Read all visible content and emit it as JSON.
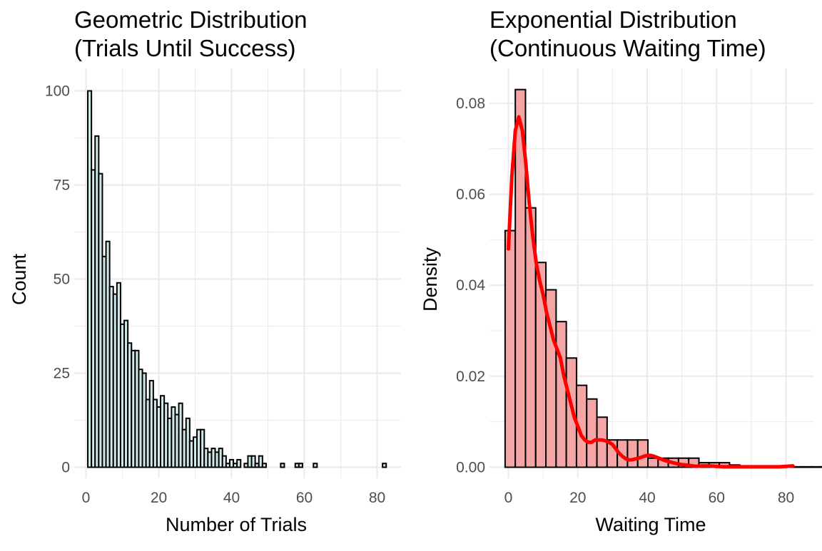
{
  "chart_data": [
    {
      "type": "bar",
      "title": [
        "Geometric Distribution",
        "(Trials Until Success)"
      ],
      "xlabel": "Number of Trials",
      "ylabel": "Count",
      "xlim": [
        -1.9,
        84
      ],
      "ylim": [
        0,
        100
      ],
      "x_ticks": [
        0,
        20,
        40,
        60,
        80
      ],
      "y_ticks": [
        0,
        25,
        50,
        75,
        100
      ],
      "grid": true,
      "bar_fill": "#cfe8e8",
      "bar_outline": "#000000",
      "x": [
        1,
        2,
        3,
        4,
        5,
        6,
        7,
        8,
        9,
        10,
        11,
        12,
        13,
        14,
        15,
        16,
        17,
        18,
        19,
        20,
        21,
        22,
        23,
        24,
        25,
        26,
        27,
        28,
        29,
        30,
        31,
        32,
        33,
        34,
        35,
        36,
        37,
        38,
        39,
        40,
        41,
        42,
        43,
        44,
        45,
        46,
        47,
        48,
        49,
        50,
        51,
        52,
        53,
        54,
        55,
        56,
        57,
        58,
        59,
        60,
        61,
        62,
        63,
        64,
        65,
        66,
        67,
        68,
        69,
        70,
        71,
        72,
        73,
        74,
        75,
        76,
        77,
        78,
        79,
        80,
        81,
        82
      ],
      "values": [
        100,
        79,
        88,
        78,
        56,
        60,
        48,
        46,
        49,
        38,
        39,
        33,
        31,
        31,
        26,
        25,
        18,
        23,
        18,
        16,
        19,
        17,
        13,
        16,
        14,
        17,
        10,
        13,
        7,
        8,
        10,
        10,
        5,
        4,
        5,
        4,
        5,
        3,
        1,
        2,
        1,
        2,
        0,
        1,
        3,
        3,
        1,
        3,
        1,
        0,
        0,
        0,
        0,
        1,
        0,
        0,
        0,
        1,
        1,
        0,
        0,
        0,
        1,
        0,
        0,
        0,
        0,
        0,
        0,
        0,
        0,
        0,
        0,
        0,
        0,
        0,
        0,
        0,
        0,
        0,
        0,
        1
      ]
    },
    {
      "type": "bar",
      "title": [
        "Exponential Distribution",
        "(Continuous Waiting Time)"
      ],
      "xlabel": "Waiting Time",
      "ylabel": "Density",
      "xlim": [
        -4.2,
        87.5
      ],
      "ylim": [
        0,
        0.083
      ],
      "x_ticks": [
        0,
        20,
        40,
        60,
        80
      ],
      "y_ticks": [
        "0.00",
        "0.02",
        "0.04",
        "0.06",
        "0.08"
      ],
      "grid": true,
      "bar_fill": "#f4a6a6",
      "bar_outline": "#000000",
      "bin_width": 2.94,
      "bin_start": -0.95,
      "values": [
        0.052,
        0.083,
        0.057,
        0.045,
        0.039,
        0.032,
        0.024,
        0.018,
        0.015,
        0.011,
        0.006,
        0.006,
        0.006,
        0.006,
        0.002,
        0.002,
        0.002,
        0.002,
        0.002,
        0.001,
        0.001,
        0.001,
        0.0005,
        0.0003,
        0.0002,
        0.0002,
        0.0001,
        0.0001,
        0.0001,
        0.0001,
        0.0001,
        0.0001,
        0.0001,
        0.0001,
        0.0001,
        0.0001,
        0.0001,
        0.0001,
        0.0001,
        0.0001,
        0.0001,
        0.0001,
        0.0001,
        0.0001,
        0.0001,
        0.0001,
        0.0001,
        0.0001,
        0.0001,
        0.0001,
        0.0001,
        0.0001,
        0.0001,
        0.0001,
        0.0001,
        0.0001,
        0.0001,
        0.0001,
        0.0001,
        0.0001,
        0.0001,
        0.0001,
        0.0001,
        0.0001,
        0.0001,
        0.0001,
        0.0001,
        0.0001,
        0.0001,
        0.0001,
        0.0001,
        0.0001,
        0.0001,
        0.0001,
        0.0001,
        0.0001,
        0.0001,
        0.0001,
        0.0001,
        0.0001,
        0.0001,
        0.0001,
        0.0001,
        0.0001,
        0.0001,
        0.0001,
        0.0001,
        0.0001,
        0.0001,
        0.0001,
        0.0001,
        0.0001,
        0.0001,
        0.0001,
        0.0001,
        0.0001,
        0.0001,
        0.0001,
        0.0001
      ],
      "density_curve": {
        "color": "#ff0000",
        "x": [
          0,
          1,
          2,
          3,
          4,
          5,
          6,
          7,
          8,
          9,
          10,
          11,
          12,
          13,
          14,
          15,
          16,
          17,
          18,
          19,
          20,
          21,
          22,
          23,
          24,
          25,
          26,
          27,
          28,
          29,
          30,
          31,
          32,
          33,
          34,
          35,
          36,
          37,
          38,
          39,
          40,
          41,
          42,
          43,
          44,
          45,
          46,
          47,
          48,
          49,
          50,
          52,
          54,
          56,
          58,
          60,
          62,
          64,
          66,
          68,
          70,
          72,
          74,
          76,
          78,
          80,
          82
        ],
        "y": [
          0.048,
          0.064,
          0.074,
          0.077,
          0.074,
          0.067,
          0.058,
          0.051,
          0.045,
          0.041,
          0.038,
          0.034,
          0.031,
          0.028,
          0.026,
          0.024,
          0.02,
          0.017,
          0.014,
          0.011,
          0.009,
          0.007,
          0.006,
          0.0055,
          0.0055,
          0.006,
          0.006,
          0.006,
          0.0058,
          0.0055,
          0.005,
          0.004,
          0.003,
          0.0023,
          0.0018,
          0.0016,
          0.0017,
          0.0019,
          0.0021,
          0.0024,
          0.0026,
          0.0026,
          0.0024,
          0.0021,
          0.0018,
          0.0015,
          0.0013,
          0.0011,
          0.0009,
          0.0007,
          0.0006,
          0.0004,
          0.0002,
          0.0003,
          0.0003,
          0.0002,
          0.0001,
          0.0001,
          0.0001,
          0.0001,
          0.0001,
          0.0001,
          0.0001,
          0.0001,
          0.0001,
          0.0002,
          0.0003
        ]
      }
    }
  ]
}
